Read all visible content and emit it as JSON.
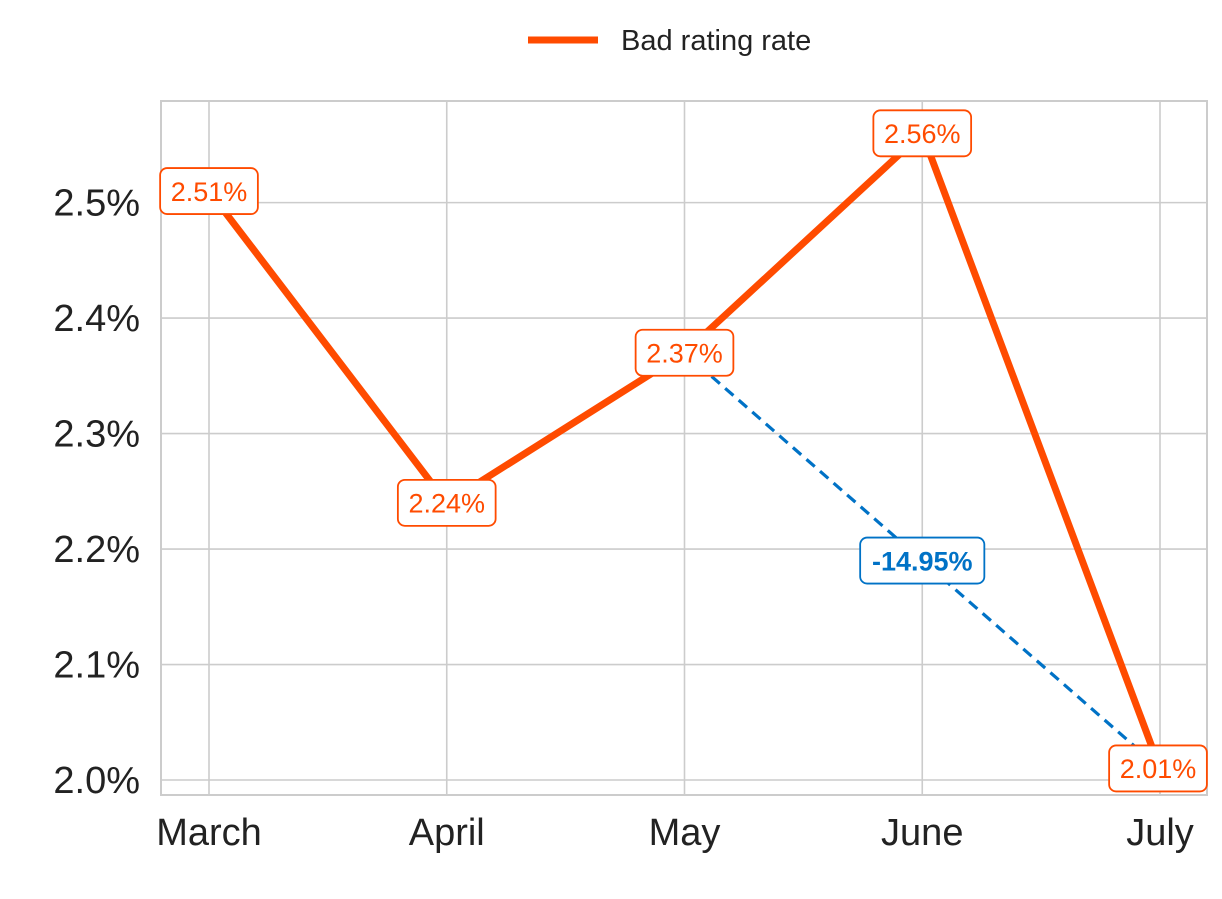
{
  "chart_data": {
    "type": "line",
    "categories": [
      "March",
      "April",
      "May",
      "June",
      "July"
    ],
    "series": [
      {
        "name": "Bad rating rate",
        "values": [
          2.51,
          2.24,
          2.37,
          2.56,
          2.01
        ],
        "labels": [
          "2.51%",
          "2.24%",
          "2.37%",
          "2.56%",
          "2.01%"
        ],
        "color": "#ff4b00"
      }
    ],
    "change_annotation": {
      "from_category": "May",
      "to_category": "July",
      "from_value": 2.37,
      "to_value": 2.01,
      "label": "-14.95%",
      "color": "#0072c6"
    },
    "y_ticks": [
      2.0,
      2.1,
      2.2,
      2.3,
      2.4,
      2.5
    ],
    "y_tick_labels": [
      "2.0%",
      "2.1%",
      "2.2%",
      "2.3%",
      "2.4%",
      "2.5%"
    ],
    "ylim": [
      1.987,
      2.588
    ],
    "grid": true,
    "legend_position": "top-center",
    "title": "",
    "xlabel": "",
    "ylabel": "",
    "grid_color": "#cccccc",
    "text_color": "#222222"
  }
}
